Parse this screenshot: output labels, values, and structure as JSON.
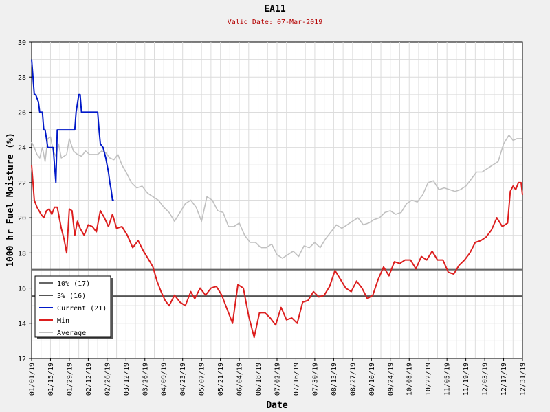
{
  "title": "EA11",
  "subtitle": "Valid Date: 07-Mar-2019",
  "chart_data": {
    "type": "line",
    "xlabel": "Date",
    "ylabel": "1000 hr Fuel Moisture (%)",
    "ylim": [
      12,
      30
    ],
    "yticks": [
      12,
      14,
      16,
      18,
      20,
      22,
      24,
      26,
      28,
      30
    ],
    "xlim": [
      "2019-01-01",
      "2019-12-31"
    ],
    "xticks": [
      "01/01/19",
      "01/15/19",
      "01/29/19",
      "02/12/19",
      "02/26/19",
      "03/12/19",
      "03/26/19",
      "04/09/19",
      "04/23/19",
      "05/07/19",
      "05/21/19",
      "06/04/19",
      "06/18/19",
      "07/02/19",
      "07/16/19",
      "07/30/19",
      "08/13/19",
      "08/27/19",
      "09/10/19",
      "09/24/19",
      "10/08/19",
      "10/22/19",
      "11/05/19",
      "11/19/19",
      "12/03/19",
      "12/17/19",
      "12/31/19"
    ],
    "grid": true,
    "legend_position": "bottom-left",
    "thresholds": [
      {
        "name": "10% (17)",
        "value": 17.05,
        "color": "#666666"
      },
      {
        "name": "3% (16)",
        "value": 15.55,
        "color": "#555555"
      }
    ],
    "series": [
      {
        "name": "Current (21)",
        "color": "#0018c8",
        "x": [
          "2019-01-01",
          "2019-01-02",
          "2019-01-03",
          "2019-01-04",
          "2019-01-06",
          "2019-01-07",
          "2019-01-08",
          "2019-01-09",
          "2019-01-10",
          "2019-01-11",
          "2019-01-12",
          "2019-01-13",
          "2019-01-14",
          "2019-01-15",
          "2019-01-17",
          "2019-01-18",
          "2019-01-19",
          "2019-01-20",
          "2019-01-21",
          "2019-01-26",
          "2019-01-28",
          "2019-02-02",
          "2019-02-03",
          "2019-02-05",
          "2019-02-06",
          "2019-02-07",
          "2019-02-08",
          "2019-02-12",
          "2019-02-19",
          "2019-02-20",
          "2019-02-21",
          "2019-02-23",
          "2019-02-25",
          "2019-02-26",
          "2019-02-27",
          "2019-02-28",
          "2019-03-01",
          "2019-03-02",
          "2019-03-03"
        ],
        "y": [
          29.0,
          28.0,
          27.0,
          27.0,
          26.6,
          26.0,
          26.0,
          26.0,
          25.0,
          25.0,
          24.5,
          24.0,
          24.0,
          24.0,
          24.0,
          23.0,
          22.0,
          25.0,
          25.0,
          25.0,
          25.0,
          25.0,
          26.0,
          27.0,
          27.0,
          26.0,
          26.0,
          26.0,
          26.0,
          25.0,
          24.2,
          24.0,
          23.4,
          23.0,
          22.6,
          22.0,
          21.6,
          21.0,
          21.0
        ]
      },
      {
        "name": "Min",
        "color": "#dc1e1e",
        "x": [
          "2019-01-01",
          "2019-01-02",
          "2019-01-03",
          "2019-01-05",
          "2019-01-08",
          "2019-01-10",
          "2019-01-12",
          "2019-01-14",
          "2019-01-16",
          "2019-01-18",
          "2019-01-20",
          "2019-01-23",
          "2019-01-25",
          "2019-01-27",
          "2019-01-29",
          "2019-01-31",
          "2019-02-02",
          "2019-02-04",
          "2019-02-06",
          "2019-02-09",
          "2019-02-12",
          "2019-02-15",
          "2019-02-18",
          "2019-02-21",
          "2019-02-24",
          "2019-02-27",
          "2019-03-02",
          "2019-03-05",
          "2019-03-09",
          "2019-03-13",
          "2019-03-17",
          "2019-03-21",
          "2019-03-25",
          "2019-03-29",
          "2019-04-01",
          "2019-04-04",
          "2019-04-07",
          "2019-04-10",
          "2019-04-13",
          "2019-04-17",
          "2019-04-21",
          "2019-04-25",
          "2019-04-29",
          "2019-05-02",
          "2019-05-06",
          "2019-05-10",
          "2019-05-14",
          "2019-05-18",
          "2019-05-22",
          "2019-05-26",
          "2019-05-30",
          "2019-06-03",
          "2019-06-07",
          "2019-06-11",
          "2019-06-15",
          "2019-06-19",
          "2019-06-23",
          "2019-06-27",
          "2019-07-01",
          "2019-07-05",
          "2019-07-09",
          "2019-07-13",
          "2019-07-17",
          "2019-07-21",
          "2019-07-25",
          "2019-07-29",
          "2019-08-02",
          "2019-08-06",
          "2019-08-10",
          "2019-08-14",
          "2019-08-18",
          "2019-08-22",
          "2019-08-26",
          "2019-08-30",
          "2019-09-03",
          "2019-09-07",
          "2019-09-11",
          "2019-09-15",
          "2019-09-19",
          "2019-09-23",
          "2019-09-27",
          "2019-10-01",
          "2019-10-05",
          "2019-10-09",
          "2019-10-13",
          "2019-10-17",
          "2019-10-21",
          "2019-10-25",
          "2019-10-29",
          "2019-11-02",
          "2019-11-06",
          "2019-11-10",
          "2019-11-14",
          "2019-11-18",
          "2019-11-22",
          "2019-11-26",
          "2019-11-30",
          "2019-12-04",
          "2019-12-08",
          "2019-12-12",
          "2019-12-16",
          "2019-12-18",
          "2019-12-20",
          "2019-12-22",
          "2019-12-24",
          "2019-12-26",
          "2019-12-28",
          "2019-12-30",
          "2019-12-31"
        ],
        "y": [
          23.0,
          22.0,
          21.0,
          20.6,
          20.2,
          20.0,
          20.4,
          20.5,
          20.2,
          20.6,
          20.6,
          19.4,
          18.8,
          18.0,
          20.5,
          20.4,
          19.0,
          19.8,
          19.4,
          19.0,
          19.6,
          19.5,
          19.2,
          20.4,
          20.0,
          19.5,
          20.2,
          19.4,
          19.5,
          19.0,
          18.3,
          18.7,
          18.1,
          17.6,
          17.2,
          16.4,
          15.8,
          15.3,
          15.0,
          15.6,
          15.2,
          15.0,
          15.8,
          15.4,
          16.0,
          15.6,
          16.0,
          16.1,
          15.6,
          14.8,
          14.0,
          16.2,
          16.0,
          14.4,
          13.2,
          14.6,
          14.6,
          14.3,
          13.9,
          14.9,
          14.2,
          14.3,
          14.0,
          15.2,
          15.3,
          15.8,
          15.5,
          15.6,
          16.1,
          17.0,
          16.5,
          16.0,
          15.8,
          16.4,
          16.0,
          15.4,
          15.6,
          16.5,
          17.2,
          16.7,
          17.5,
          17.4,
          17.6,
          17.6,
          17.1,
          17.8,
          17.6,
          18.1,
          17.6,
          17.6,
          16.9,
          16.8,
          17.3,
          17.6,
          18.0,
          18.6,
          18.7,
          18.9,
          19.3,
          20.0,
          19.5,
          19.6,
          19.7,
          21.5,
          21.8,
          21.6,
          22.0,
          22.0,
          21.3
        ]
      },
      {
        "name": "Average",
        "color": "#c0c0c0",
        "x": [
          "2019-01-01",
          "2019-01-03",
          "2019-01-05",
          "2019-01-07",
          "2019-01-09",
          "2019-01-11",
          "2019-01-13",
          "2019-01-15",
          "2019-01-17",
          "2019-01-19",
          "2019-01-21",
          "2019-01-23",
          "2019-01-25",
          "2019-01-27",
          "2019-01-29",
          "2019-02-01",
          "2019-02-04",
          "2019-02-07",
          "2019-02-10",
          "2019-02-13",
          "2019-02-16",
          "2019-02-19",
          "2019-02-22",
          "2019-02-25",
          "2019-02-28",
          "2019-03-03",
          "2019-03-06",
          "2019-03-09",
          "2019-03-12",
          "2019-03-16",
          "2019-03-20",
          "2019-03-24",
          "2019-03-28",
          "2019-04-01",
          "2019-04-05",
          "2019-04-09",
          "2019-04-13",
          "2019-04-17",
          "2019-04-21",
          "2019-04-25",
          "2019-04-29",
          "2019-05-03",
          "2019-05-07",
          "2019-05-11",
          "2019-05-15",
          "2019-05-19",
          "2019-05-23",
          "2019-05-27",
          "2019-05-31",
          "2019-06-04",
          "2019-06-08",
          "2019-06-12",
          "2019-06-16",
          "2019-06-20",
          "2019-06-24",
          "2019-06-28",
          "2019-07-02",
          "2019-07-06",
          "2019-07-10",
          "2019-07-14",
          "2019-07-18",
          "2019-07-22",
          "2019-07-26",
          "2019-07-30",
          "2019-08-03",
          "2019-08-07",
          "2019-08-11",
          "2019-08-15",
          "2019-08-19",
          "2019-08-23",
          "2019-08-27",
          "2019-08-31",
          "2019-09-04",
          "2019-09-08",
          "2019-09-12",
          "2019-09-16",
          "2019-09-20",
          "2019-09-24",
          "2019-09-28",
          "2019-10-02",
          "2019-10-06",
          "2019-10-10",
          "2019-10-14",
          "2019-10-18",
          "2019-10-22",
          "2019-10-26",
          "2019-10-30",
          "2019-11-03",
          "2019-11-07",
          "2019-11-11",
          "2019-11-15",
          "2019-11-19",
          "2019-11-23",
          "2019-11-27",
          "2019-12-01",
          "2019-12-05",
          "2019-12-09",
          "2019-12-13",
          "2019-12-17",
          "2019-12-21",
          "2019-12-24",
          "2019-12-27",
          "2019-12-31"
        ],
        "y": [
          24.3,
          24.0,
          23.6,
          23.4,
          24.0,
          23.2,
          24.5,
          24.6,
          23.8,
          23.5,
          24.2,
          23.4,
          23.5,
          23.6,
          24.5,
          23.8,
          23.6,
          23.5,
          23.8,
          23.6,
          23.6,
          23.6,
          23.8,
          23.7,
          23.4,
          23.3,
          23.6,
          23.0,
          22.6,
          22.0,
          21.7,
          21.8,
          21.4,
          21.2,
          21.0,
          20.6,
          20.3,
          19.8,
          20.3,
          20.8,
          21.0,
          20.6,
          19.8,
          21.2,
          21.0,
          20.4,
          20.3,
          19.5,
          19.5,
          19.7,
          19.0,
          18.6,
          18.6,
          18.3,
          18.3,
          18.5,
          17.9,
          17.7,
          17.9,
          18.1,
          17.8,
          18.4,
          18.3,
          18.6,
          18.3,
          18.8,
          19.2,
          19.6,
          19.4,
          19.6,
          19.8,
          20.0,
          19.6,
          19.7,
          19.9,
          20.0,
          20.3,
          20.4,
          20.2,
          20.3,
          20.8,
          21.0,
          20.9,
          21.3,
          22.0,
          22.1,
          21.6,
          21.7,
          21.6,
          21.5,
          21.6,
          21.8,
          22.2,
          22.6,
          22.6,
          22.8,
          23.0,
          23.2,
          24.2,
          24.7,
          24.4,
          24.5,
          24.5
        ]
      }
    ]
  }
}
